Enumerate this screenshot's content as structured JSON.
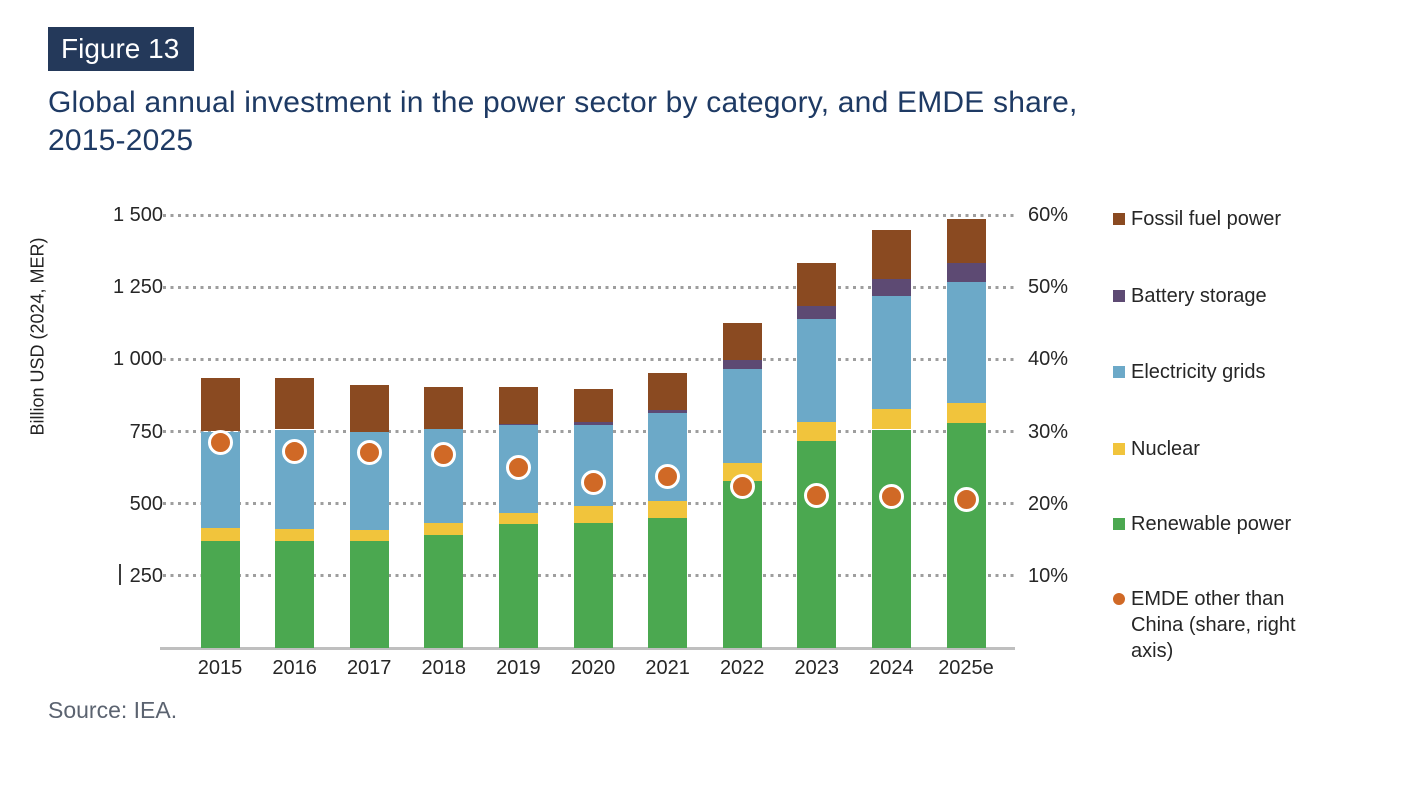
{
  "figure_badge": "Figure 13",
  "title": {
    "line1": "Global annual investment in the power sector by category, and EMDE share,",
    "line2": "2015-2025"
  },
  "source": "Source: IEA.",
  "legend": {
    "items": [
      {
        "label": "Fossil fuel power",
        "color": "#8A4A21",
        "shape": "square"
      },
      {
        "label": "Battery storage",
        "color": "#5D4A73",
        "shape": "square"
      },
      {
        "label": "Electricity grids",
        "color": "#6CA9C8",
        "shape": "square"
      },
      {
        "label": "Nuclear",
        "color": "#F1C43C",
        "shape": "square"
      },
      {
        "label": "Renewable power",
        "color": "#4BA850",
        "shape": "square"
      },
      {
        "label": "EMDE other than China (share, right axis)",
        "color": "#D06926",
        "shape": "circle"
      }
    ]
  },
  "chart_data": {
    "type": "bar",
    "subtype": "stacked_bars_with_point_overlay",
    "title": "Global annual investment in the power sector by category, and EMDE share, 2015-2025",
    "categories": [
      "2015",
      "2016",
      "2017",
      "2018",
      "2019",
      "2020",
      "2021",
      "2022",
      "2023",
      "2024",
      "2025e"
    ],
    "series": [
      {
        "name": "Renewable power",
        "color": "#4BA850",
        "values": [
          370,
          370,
          372,
          393,
          431,
          433,
          451,
          578,
          716,
          757,
          778
        ]
      },
      {
        "name": "Nuclear",
        "color": "#F1C43C",
        "values": [
          46,
          43,
          38,
          40,
          37,
          60,
          57,
          64,
          67,
          72,
          72
        ]
      },
      {
        "name": "Electricity grids",
        "color": "#6CA9C8",
        "values": [
          334,
          344,
          338,
          327,
          303,
          281,
          306,
          325,
          358,
          390,
          418
        ]
      },
      {
        "name": "Battery storage",
        "color": "#5D4A73",
        "values": [
          0,
          0,
          0,
          0,
          6,
          8,
          12,
          30,
          43,
          58,
          66
        ]
      },
      {
        "name": "Fossil fuel power",
        "color": "#8A4A21",
        "values": [
          185,
          178,
          164,
          143,
          126,
          115,
          127,
          129,
          150,
          172,
          153
        ]
      }
    ],
    "stack_totals": [
      935,
      935,
      912,
      903,
      903,
      897,
      953,
      1126,
      1334,
      1449,
      1487
    ],
    "overlay": {
      "name": "EMDE other than China (share, right axis)",
      "type": "scatter",
      "axis": "right",
      "color": "#D06926",
      "marker_ring": "#FFFFFF",
      "values_pct": [
        28.5,
        27.3,
        27.1,
        26.8,
        25.0,
        23.0,
        23.8,
        22.4,
        21.2,
        21.0,
        20.6
      ]
    },
    "left_axis": {
      "label": "Billion USD (2024, MER)",
      "tick_labels": [
        "1 500",
        "1 250",
        "1 000",
        "750",
        "500",
        "250"
      ],
      "tick_values": [
        1500,
        1250,
        1000,
        750,
        500,
        250
      ],
      "min": 0,
      "max": 1500,
      "step": 250
    },
    "right_axis": {
      "tick_labels": [
        "60%",
        "50%",
        "40%",
        "30%",
        "20%",
        "10%"
      ],
      "tick_values": [
        60,
        50,
        40,
        30,
        20,
        10
      ],
      "min": 0,
      "max": 60,
      "step": 10
    },
    "grid": {
      "style": "dotted",
      "orientation": "horizontal",
      "color": "#9E9E9E"
    },
    "legend_position": "right"
  },
  "colors": {
    "badge_bg": "#24395A",
    "title_text": "#1E3A64",
    "axis_line": "#BFBFBF",
    "tick_text": "#262626",
    "source_text": "#5B6370"
  }
}
